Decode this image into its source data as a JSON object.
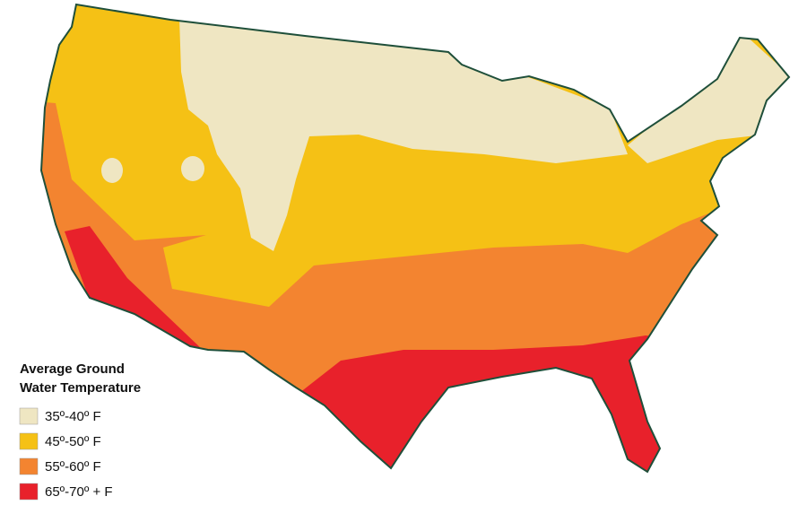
{
  "legend": {
    "title_lines": [
      "Average Ground",
      "Water Temperature"
    ],
    "items": [
      {
        "label": "35º-40º F",
        "color": "#efe6c2"
      },
      {
        "label": "45º-50º F",
        "color": "#f5c115"
      },
      {
        "label": "55º-60º F",
        "color": "#f38430"
      },
      {
        "label": "65º-70º + F",
        "color": "#e8212b"
      }
    ]
  }
}
